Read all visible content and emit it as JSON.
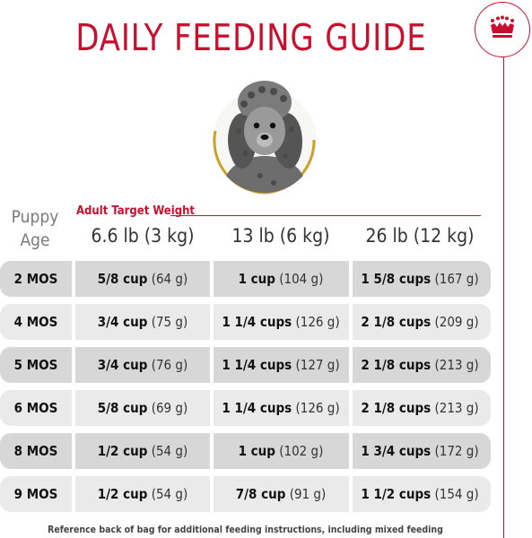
{
  "title": "DAILY FEEDING GUIDE",
  "brand": {
    "accent_color": "#c8102e",
    "logo_icon": "crown-icon"
  },
  "image": {
    "subject": "puppy-poodle-photo"
  },
  "table": {
    "row_header_line1": "Puppy",
    "row_header_line2": "Age",
    "group_label": "Adult Target Weight",
    "columns": [
      "6.6 lb (3 kg)",
      "13 lb (6 kg)",
      "26 lb (12 kg)"
    ],
    "rows": [
      {
        "age": "2 MOS",
        "cells": [
          {
            "cups": "5/8 cup",
            "grams": "(64 g)"
          },
          {
            "cups": "1 cup",
            "grams": "(104 g)"
          },
          {
            "cups": "1 5/8 cups",
            "grams": "(167 g)"
          }
        ]
      },
      {
        "age": "4 MOS",
        "cells": [
          {
            "cups": "3/4 cup",
            "grams": "(75 g)"
          },
          {
            "cups": "1 1/4 cups",
            "grams": "(126 g)"
          },
          {
            "cups": "2 1/8 cups",
            "grams": "(209 g)"
          }
        ]
      },
      {
        "age": "5 MOS",
        "cells": [
          {
            "cups": "3/4 cup",
            "grams": "(76 g)"
          },
          {
            "cups": "1 1/4 cups",
            "grams": "(127 g)"
          },
          {
            "cups": "2 1/8 cups",
            "grams": "(213 g)"
          }
        ]
      },
      {
        "age": "6 MOS",
        "cells": [
          {
            "cups": "5/8 cup",
            "grams": "(69 g)"
          },
          {
            "cups": "1 1/4 cups",
            "grams": "(126 g)"
          },
          {
            "cups": "2 1/8 cups",
            "grams": "(213 g)"
          }
        ]
      },
      {
        "age": "8 MOS",
        "cells": [
          {
            "cups": "1/2 cup",
            "grams": "(54 g)"
          },
          {
            "cups": "1 cup",
            "grams": "(102 g)"
          },
          {
            "cups": "1 3/4 cups",
            "grams": "(172 g)"
          }
        ]
      },
      {
        "age": "9 MOS",
        "cells": [
          {
            "cups": "1/2 cup",
            "grams": "(54 g)"
          },
          {
            "cups": "7/8 cup",
            "grams": "(91 g)"
          },
          {
            "cups": "1 1/2 cups",
            "grams": "(154 g)"
          }
        ]
      }
    ]
  },
  "footnote": "Reference back of bag for additional feeding instructions, including mixed feeding"
}
